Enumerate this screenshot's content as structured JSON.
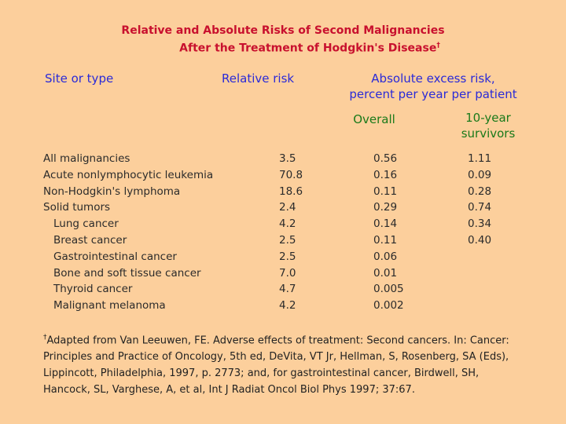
{
  "title": {
    "line1": "Relative and Absolute Risks of Second Malignancies",
    "line2": "After the Treatment of Hodgkin's Disease",
    "marker": "†"
  },
  "headers": {
    "site": "Site or type",
    "relative": "Relative risk",
    "absolute_line1": "Absolute excess risk,",
    "absolute_line2": "percent per year per patient",
    "overall": "Overall",
    "survivors_line1": "10-year",
    "survivors_line2": "survivors"
  },
  "rows": [
    {
      "site": "All malignancies",
      "relative": "3.5",
      "overall": "0.56",
      "survivors": "1.11"
    },
    {
      "site": "Acute nonlymphocytic leukemia",
      "relative": "70.8",
      "overall": "0.16",
      "survivors": "0.09"
    },
    {
      "site": "Non-Hodgkin's lymphoma",
      "relative": "18.6",
      "overall": "0.11",
      "survivors": "0.28"
    },
    {
      "site": "Solid tumors",
      "relative": "2.4",
      "overall": "0.29",
      "survivors": "0.74"
    },
    {
      "site": "Lung cancer",
      "relative": "4.2",
      "overall": "0.14",
      "survivors": "0.34"
    },
    {
      "site": "Breast cancer",
      "relative": "2.5",
      "overall": "0.11",
      "survivors": "0.40"
    },
    {
      "site": "Gastrointestinal cancer",
      "relative": "2.5",
      "overall": "0.06",
      "survivors": ""
    },
    {
      "site": "Bone and soft tissue cancer",
      "relative": "7.0",
      "overall": "0.01",
      "survivors": ""
    },
    {
      "site": "Thyroid cancer",
      "relative": "4.7",
      "overall": "0.005",
      "survivors": ""
    },
    {
      "site": "Malignant melanoma",
      "relative": "4.2",
      "overall": "0.002",
      "survivors": ""
    }
  ],
  "footnote": {
    "marker": "†",
    "text": "Adapted from Van Leeuwen, FE. Adverse effects of treatment: Second cancers. In: Cancer: Principles and Practice of Oncology, 5th ed, DeVita, VT Jr, Hellman, S, Rosenberg, SA (Eds), Lippincott, Philadelphia, 1997, p. 2773; and, for gastrointestinal cancer, Birdwell, SH, Hancock, SL, Varghese, A, et al, Int J Radiat Oncol Biol Phys 1997; 37:67."
  }
}
